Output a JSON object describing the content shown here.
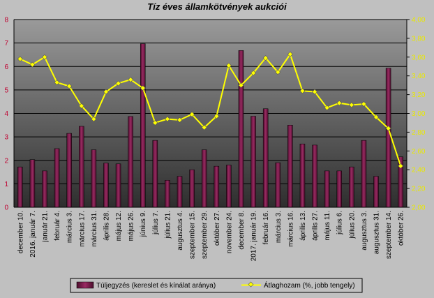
{
  "chart_data": {
    "type": "bar",
    "title": "Tíz éves államkötvények aukciói",
    "categories": [
      "december 10.",
      "2016. január 7.",
      "január 21.",
      "február 4.",
      "március 3.",
      "március 17.",
      "március 31.",
      "április 28.",
      "május 12.",
      "május 26.",
      "június 9.",
      "július 7.",
      "július 21.",
      "augusztus 4.",
      "szeptember 15.",
      "szeptember 29.",
      "október 27.",
      "november 24.",
      "december 8.",
      "2017. január 19.",
      "február 16.",
      "március 3.",
      "március 16.",
      "április 13.",
      "április 27.",
      "május 11.",
      "július 6.",
      "július 20.",
      "augusztus 3.",
      "augusztus 31.",
      "szeptember 14.",
      "október 26."
    ],
    "series": [
      {
        "name": "Túljegyzés (kereslet és kínálat aránya)",
        "type": "bar",
        "axis": "left",
        "color": "#7a1a4a",
        "values": [
          1.72,
          2.03,
          1.55,
          2.5,
          3.15,
          3.45,
          2.45,
          1.88,
          1.85,
          3.87,
          6.97,
          2.85,
          1.15,
          1.32,
          1.6,
          2.45,
          1.75,
          1.8,
          6.68,
          3.88,
          4.2,
          1.9,
          3.5,
          2.7,
          2.65,
          1.55,
          1.55,
          1.72,
          2.85,
          1.32,
          5.93,
          2.15
        ]
      },
      {
        "name": "Átlaghozam (%, jobb tengely)",
        "type": "line",
        "axis": "right",
        "color": "#ffff00",
        "values": [
          3.58,
          3.52,
          3.6,
          3.33,
          3.29,
          3.08,
          2.94,
          3.23,
          3.32,
          3.36,
          3.27,
          2.9,
          2.94,
          2.93,
          2.99,
          2.85,
          2.97,
          3.51,
          3.3,
          3.43,
          3.59,
          3.44,
          3.63,
          3.24,
          3.23,
          3.06,
          3.11,
          3.09,
          3.1,
          2.96,
          2.84,
          2.44
        ]
      }
    ],
    "left_axis": {
      "ylim": [
        0,
        8
      ],
      "ticks": [
        "0",
        "1",
        "2",
        "3",
        "4",
        "5",
        "6",
        "7",
        "8"
      ]
    },
    "right_axis": {
      "ylim": [
        2.0,
        4.0
      ],
      "ticks": [
        "2,00",
        "2,20",
        "2,40",
        "2,60",
        "2,80",
        "3,00",
        "3,20",
        "3,40",
        "3,60",
        "3,80",
        "4,00"
      ]
    },
    "grid": true,
    "legend": "bottom"
  },
  "colors": {
    "background": "#c0c0c0",
    "plot_top": "#9a9a9a",
    "plot_bottom": "#2e2e2e",
    "bar": "#7a1a4a",
    "line": "#ffff00",
    "left_axis_text": "#c00030",
    "right_axis_text": "#e8e800"
  }
}
